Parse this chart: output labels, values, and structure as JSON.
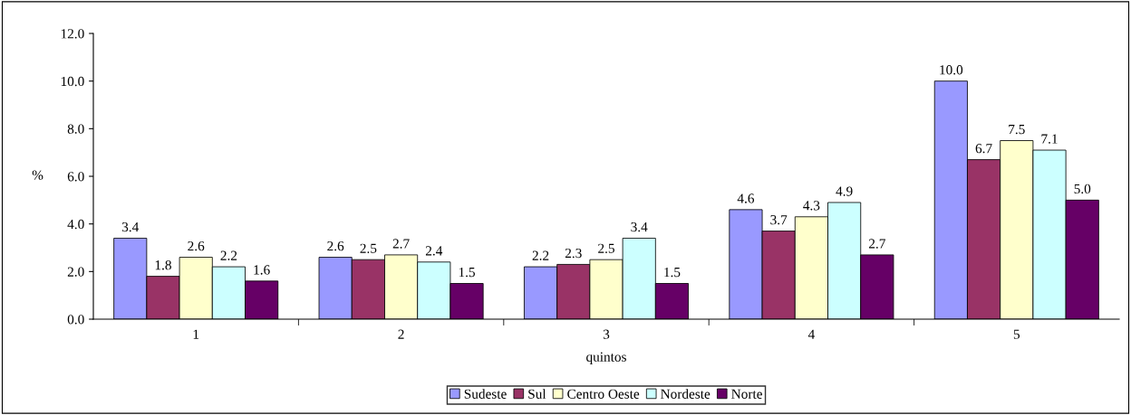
{
  "chart_data": {
    "type": "bar",
    "xlabel": "quintos",
    "ylabel": "%",
    "categories": [
      "1",
      "2",
      "3",
      "4",
      "5"
    ],
    "series": [
      {
        "name": "Sudeste",
        "color": "#9999ff",
        "values": [
          3.4,
          2.6,
          2.2,
          4.6,
          10.0
        ],
        "value_labels": [
          "3.4",
          "2.6",
          "2.2",
          "4.6",
          "10.0"
        ]
      },
      {
        "name": "Sul",
        "color": "#993366",
        "values": [
          1.8,
          2.5,
          2.3,
          3.7,
          6.7
        ],
        "value_labels": [
          "1.8",
          "2.5",
          "2.3",
          "3.7",
          "6.7"
        ]
      },
      {
        "name": "Centro Oeste",
        "color": "#ffffcc",
        "values": [
          2.6,
          2.7,
          2.5,
          4.3,
          7.5
        ],
        "value_labels": [
          "2.6",
          "2.7",
          "2.5",
          "4.3",
          "7.5"
        ]
      },
      {
        "name": "Nordeste",
        "color": "#ccffff",
        "values": [
          2.2,
          2.4,
          3.4,
          4.9,
          7.1
        ],
        "value_labels": [
          "2.2",
          "2.4",
          "3.4",
          "4.9",
          "7.1"
        ]
      },
      {
        "name": "Norte",
        "color": "#660066",
        "values": [
          1.6,
          1.5,
          1.5,
          2.7,
          5.0
        ],
        "value_labels": [
          "1.6",
          "1.5",
          "1.5",
          "2.7",
          "5.0"
        ]
      }
    ],
    "ylim": [
      0,
      12
    ],
    "yticks": [
      {
        "value": 0,
        "label": "0.0"
      },
      {
        "value": 2,
        "label": "2.0"
      },
      {
        "value": 4,
        "label": "4.0"
      },
      {
        "value": 6,
        "label": "6.0"
      },
      {
        "value": 8,
        "label": "8.0"
      },
      {
        "value": 10,
        "label": "10.0"
      },
      {
        "value": 12,
        "label": "12.0"
      }
    ],
    "grid": false,
    "legend": "bottom"
  }
}
